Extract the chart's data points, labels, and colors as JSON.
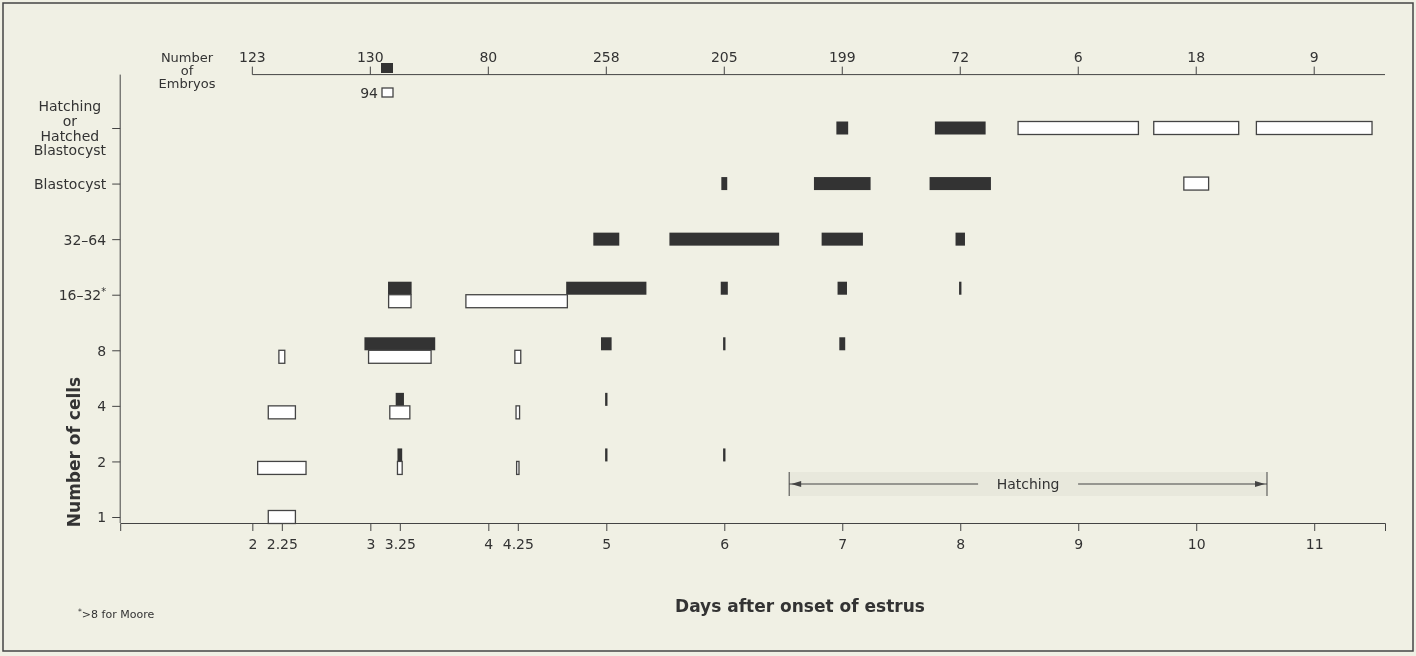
{
  "chart_data": {
    "type": "bar",
    "orientation": "horizontal",
    "xlabel": "Days after onset of estrus",
    "ylabel": "Number of cells",
    "categories": [
      "Hatching\nor\nHatched\nBlastocyst",
      "Blastocyst",
      "32–64",
      "16–32$^{*}$",
      "8",
      "4",
      "2",
      "1"
    ],
    "xlim": [
      0.88,
      11.6
    ],
    "xticks": [
      2,
      2.25,
      3,
      3.25,
      4,
      4.25,
      5,
      6,
      7,
      8,
      9,
      10,
      11
    ],
    "series": [
      {
        "color": "#333333",
        "values": [
          null,
          null,
          null,
          0.2,
          0.6,
          0.07,
          0.04,
          null
        ],
        "base": [
          null,
          null,
          null,
          3.15,
          2.95,
          3.215,
          3.23,
          null
        ]
      },
      {
        "color": "#333333",
        "values": [
          null,
          null,
          0.22,
          0.68,
          0.09,
          0.02,
          0.02,
          null
        ],
        "base": [
          null,
          null,
          4.89,
          4.66,
          4.955,
          4.99,
          4.99,
          null
        ]
      },
      {
        "color": "#333333",
        "values": [
          null,
          0.05,
          0.93,
          0.06,
          0.02,
          null,
          0.02,
          null
        ],
        "base": [
          null,
          5.975,
          5.535,
          5.97,
          5.99,
          null,
          5.99,
          null
        ]
      },
      {
        "color": "#333333",
        "values": [
          0.1,
          0.48,
          0.35,
          0.08,
          0.05,
          null,
          null,
          null
        ],
        "base": [
          6.95,
          6.76,
          6.825,
          6.96,
          6.975,
          null,
          null,
          null
        ]
      },
      {
        "color": "#333333",
        "values": [
          0.43,
          0.52,
          0.08,
          0.02,
          null,
          null,
          null,
          null
        ],
        "base": [
          7.785,
          7.74,
          7.96,
          7.99,
          null,
          null,
          null,
          null
        ]
      },
      {
        "color": "#ffffff",
        "values": [
          null,
          null,
          null,
          null,
          0.05,
          0.23,
          0.41,
          0.23
        ],
        "base": [
          null,
          null,
          null,
          null,
          2.225,
          2.135,
          2.045,
          2.135
        ]
      },
      {
        "color": "#ffffff",
        "values": [
          null,
          null,
          null,
          0.19,
          0.53,
          0.17,
          0.04,
          null
        ],
        "base": [
          null,
          null,
          null,
          3.155,
          2.985,
          3.165,
          3.23,
          null
        ]
      },
      {
        "color": "#ffffff",
        "values": [
          null,
          null,
          null,
          0.86,
          0.05,
          0.03,
          0.02,
          null
        ],
        "base": [
          null,
          null,
          null,
          3.81,
          4.225,
          4.235,
          4.24,
          null
        ]
      },
      {
        "color": "#ffffff",
        "values": [
          1.02,
          null,
          null,
          null,
          null,
          null,
          null,
          null
        ],
        "base": [
          8.49,
          null,
          null,
          null,
          null,
          null,
          null,
          null
        ]
      },
      {
        "color": "#ffffff",
        "values": [
          0.72,
          0.21,
          null,
          null,
          null,
          null,
          null,
          null
        ],
        "base": [
          9.64,
          9.895,
          null,
          null,
          null,
          null,
          null,
          null
        ]
      },
      {
        "color": "#ffffff",
        "values": [
          0.98,
          null,
          null,
          null,
          null,
          null,
          null,
          null
        ],
        "base": [
          10.51,
          null,
          null,
          null,
          null,
          null,
          null,
          null
        ]
      }
    ],
    "bands": [
      {
        "axis": "x",
        "from": 6.55,
        "to": 10.6,
        "label": "Hatching"
      }
    ],
    "annotations": [
      "Number of Embryos",
      "123",
      "130",
      "80",
      "258",
      "205",
      "199",
      "72",
      "6",
      "18",
      "9",
      "94",
      "$^{*}$>8 for Moore"
    ]
  }
}
